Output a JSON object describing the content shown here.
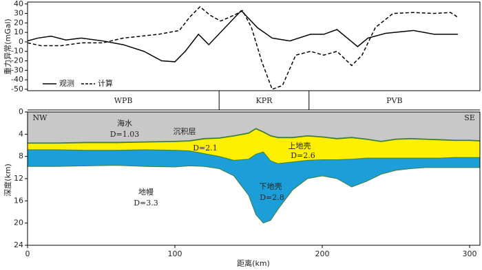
{
  "chart_data": [
    {
      "type": "line",
      "ylabel": "重力异常(mGal)",
      "xlim": [
        0,
        307
      ],
      "ylim": [
        -51.5,
        42
      ],
      "yticks": [
        40,
        30,
        20,
        10,
        0,
        -10,
        -20,
        -30,
        -40,
        -50
      ],
      "legend": "lower left",
      "regions": [
        {
          "name": "WPB",
          "from": 0,
          "to": 130
        },
        {
          "name": "KPR",
          "from": 130,
          "to": 191
        },
        {
          "name": "PVB",
          "from": 191,
          "to": 307
        }
      ],
      "series": [
        {
          "name": "观测",
          "color": "#000000",
          "dash": false,
          "x": [
            0,
            7,
            16,
            26,
            36.5,
            51,
            65,
            79,
            91,
            100,
            107,
            116,
            123,
            145,
            156,
            166,
            178,
            192,
            201,
            210,
            217,
            224,
            231,
            243,
            262,
            276,
            292
          ],
          "values": [
            1,
            4,
            6,
            2,
            4,
            1,
            -3,
            -10,
            -20,
            -21,
            -10,
            8,
            -3,
            33,
            15,
            4,
            1,
            8,
            8,
            13,
            4,
            -5,
            4,
            9,
            12,
            8,
            8
          ]
        },
        {
          "name": "计算",
          "color": "#000000",
          "dash": true,
          "x": [
            0,
            9,
            23,
            37,
            51,
            65,
            89,
            103,
            110,
            117,
            124,
            131,
            140,
            146,
            152,
            159,
            166,
            173,
            182,
            192,
            201,
            210,
            220,
            227,
            236,
            248,
            262,
            276,
            287,
            292
          ],
          "values": [
            -1,
            -4,
            -4,
            -1,
            -1,
            4,
            8,
            12,
            26,
            37,
            28,
            22,
            28,
            33,
            15,
            -21,
            -50,
            -46,
            -14,
            -10,
            -14,
            -10,
            -25,
            -14,
            15,
            30,
            31,
            30,
            31,
            26
          ]
        }
      ]
    },
    {
      "type": "section",
      "xlabel": "距离(km)",
      "ylabel": "深度(km)",
      "xlim": [
        0,
        307
      ],
      "ylim": [
        0,
        24
      ],
      "xticks": [
        0,
        100,
        200,
        300
      ],
      "yticks": [
        0,
        4,
        8,
        12,
        16,
        20,
        24
      ],
      "x": [
        0,
        20,
        40,
        60,
        80,
        100,
        110,
        120,
        130,
        140,
        150,
        155,
        160,
        165,
        170,
        180,
        190,
        200,
        210,
        220,
        230,
        240,
        250,
        260,
        270,
        280,
        290,
        300,
        307
      ],
      "layers": [
        {
          "color": "#c8c8c8",
          "base": [
            5.6,
            5.6,
            5.5,
            5.5,
            5.4,
            5.3,
            5.2,
            4.8,
            4.7,
            4.3,
            3.8,
            3.0,
            3.6,
            4.3,
            4.6,
            4.6,
            4.3,
            4.5,
            4.8,
            4.6,
            4.9,
            5.3,
            4.9,
            4.8,
            4.9,
            5.0,
            5.1,
            5.1,
            5.2
          ]
        },
        {
          "color": "#ffef00",
          "base": [
            6.8,
            6.8,
            6.9,
            6.9,
            6.8,
            6.9,
            7.0,
            7.5,
            8.0,
            8.7,
            8.5,
            7.6,
            7.2,
            8.8,
            9.3,
            9.0,
            8.7,
            8.6,
            8.6,
            8.5,
            8.3,
            8.3,
            8.3,
            8.3,
            8.3,
            8.3,
            8.2,
            8.2,
            8.2
          ]
        },
        {
          "color": "#1c9fd8",
          "base": [
            9.8,
            9.8,
            9.7,
            9.6,
            9.8,
            9.9,
            9.7,
            9.8,
            10.2,
            11.5,
            15,
            18.5,
            20.0,
            19.5,
            17.5,
            14,
            12,
            11.5,
            12,
            13.5,
            12.5,
            11.2,
            10.5,
            10.2,
            10.0,
            10.0,
            10.0,
            10.0,
            10.0
          ]
        }
      ],
      "annotations": [
        "NW",
        "SE",
        "海水",
        "D=1.03",
        "沉积层",
        "D=2.1",
        "上地壳",
        "D=2.6",
        "下地壳",
        "D=2.8",
        "地幔",
        "D=3.3"
      ]
    }
  ]
}
